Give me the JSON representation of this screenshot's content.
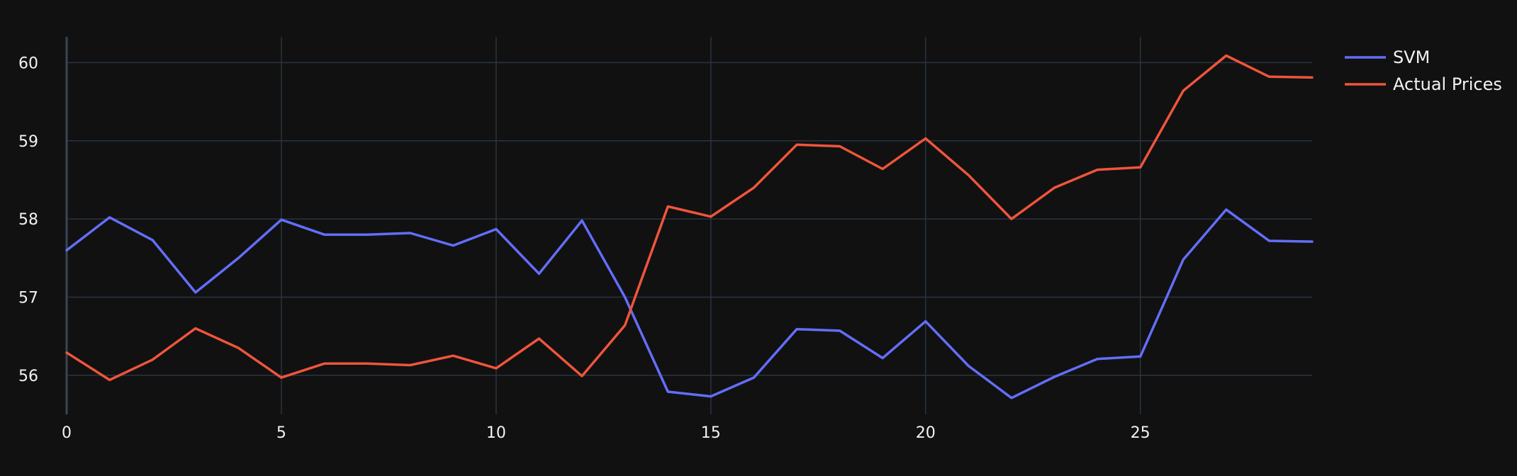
{
  "chart_data": {
    "type": "line",
    "title": "",
    "xlabel": "",
    "ylabel": "",
    "xlim": [
      0,
      29
    ],
    "ylim": [
      55.5,
      60.33
    ],
    "x_ticks": [
      0,
      5,
      10,
      15,
      20,
      25
    ],
    "y_ticks": [
      56,
      57,
      58,
      59,
      60
    ],
    "grid": true,
    "legend_position": "top-right",
    "x": [
      0,
      1,
      2,
      3,
      4,
      5,
      6,
      7,
      8,
      9,
      10,
      11,
      12,
      13,
      14,
      15,
      16,
      17,
      18,
      19,
      20,
      21,
      22,
      23,
      24,
      25,
      26,
      27,
      28,
      29
    ],
    "series": [
      {
        "name": "SVM",
        "color": "#636efa",
        "values": [
          57.6,
          58.02,
          57.73,
          57.06,
          57.5,
          57.99,
          57.8,
          57.8,
          57.82,
          57.66,
          57.87,
          57.3,
          57.98,
          57.0,
          55.79,
          55.73,
          55.97,
          56.59,
          56.57,
          56.22,
          56.69,
          56.12,
          55.71,
          55.98,
          56.21,
          56.24,
          57.48,
          58.12,
          57.72,
          57.71
        ]
      },
      {
        "name": "Actual Prices",
        "color": "#ef553b",
        "values": [
          56.29,
          55.94,
          56.2,
          56.6,
          56.35,
          55.97,
          56.15,
          56.15,
          56.13,
          56.25,
          56.09,
          56.47,
          55.99,
          56.64,
          58.16,
          58.03,
          58.4,
          58.95,
          58.93,
          58.64,
          59.03,
          58.56,
          58.0,
          58.4,
          58.63,
          58.66,
          59.64,
          60.09,
          59.82,
          59.81
        ]
      }
    ]
  }
}
